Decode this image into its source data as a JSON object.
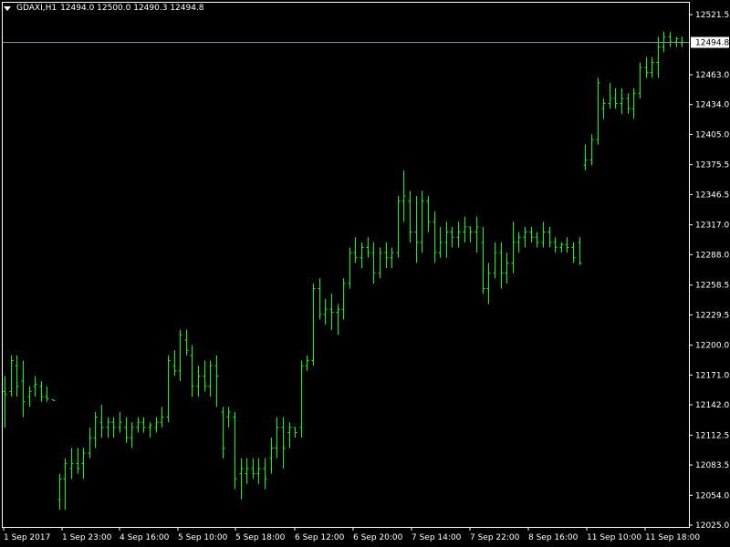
{
  "header": {
    "symbol": "GDAXI,H1",
    "ohlc": "12494.0 12500.0 12490.3 12494.8"
  },
  "colors": {
    "background": "#000000",
    "bars": "#00ff00",
    "grid_text": "#ffffff",
    "price_line": "#7f8fa6"
  },
  "current_price_label": "12494.8",
  "chart_data": {
    "type": "ohlc",
    "current_price": 12494.8,
    "ylim": [
      12020,
      12535
    ],
    "y_ticks": [
      "12521.5",
      "12463.0",
      "12434.0",
      "12405.0",
      "12375.5",
      "12346.5",
      "12317.0",
      "12288.0",
      "12258.5",
      "12229.5",
      "12200.0",
      "12171.0",
      "12142.0",
      "12112.5",
      "12083.5",
      "12054.0",
      "12025.0"
    ],
    "x_ticks": [
      "1 Sep 2017",
      "1 Sep 23:00",
      "4 Sep 16:00",
      "5 Sep 10:00",
      "5 Sep 18:00",
      "6 Sep 12:00",
      "6 Sep 20:00",
      "7 Sep 14:00",
      "7 Sep 22:00",
      "8 Sep 16:00",
      "11 Sep 10:00",
      "11 Sep 18:00"
    ],
    "bars": [
      [
        12155,
        12170,
        12120,
        12152
      ],
      [
        12155,
        12190,
        12150,
        12185
      ],
      [
        12180,
        12190,
        12150,
        12160
      ],
      [
        12165,
        12185,
        12130,
        12145
      ],
      [
        12150,
        12160,
        12140,
        12155
      ],
      [
        12160,
        12170,
        12150,
        12162
      ],
      [
        12160,
        12165,
        12145,
        12150
      ],
      [
        12150,
        12160,
        12145,
        12148
      ],
      [
        12147,
        12147,
        12146,
        12146
      ],
      [
        12050,
        12075,
        12040,
        12070
      ],
      [
        12070,
        12090,
        12040,
        12085
      ],
      [
        12080,
        12100,
        12070,
        12085
      ],
      [
        12085,
        12100,
        12075,
        12080
      ],
      [
        12085,
        12100,
        12070,
        12095
      ],
      [
        12095,
        12120,
        12090,
        12110
      ],
      [
        12110,
        12135,
        12100,
        12130
      ],
      [
        12125,
        12142,
        12110,
        12120
      ],
      [
        12120,
        12130,
        12110,
        12125
      ],
      [
        12125,
        12130,
        12110,
        12120
      ],
      [
        12120,
        12135,
        12115,
        12125
      ],
      [
        12120,
        12130,
        12105,
        12110
      ],
      [
        12110,
        12125,
        12100,
        12120
      ],
      [
        12120,
        12130,
        12115,
        12125
      ],
      [
        12125,
        12130,
        12115,
        12120
      ],
      [
        12120,
        12125,
        12110,
        12122
      ],
      [
        12120,
        12130,
        12115,
        12125
      ],
      [
        12125,
        12140,
        12120,
        12130
      ],
      [
        12130,
        12190,
        12125,
        12185
      ],
      [
        12180,
        12195,
        12170,
        12175
      ],
      [
        12175,
        12215,
        12165,
        12210
      ],
      [
        12205,
        12215,
        12190,
        12195
      ],
      [
        12190,
        12200,
        12150,
        12160
      ],
      [
        12160,
        12180,
        12150,
        12170
      ],
      [
        12170,
        12185,
        12155,
        12160
      ],
      [
        12160,
        12185,
        12150,
        12180
      ],
      [
        12180,
        12190,
        12140,
        12170
      ],
      [
        12135,
        12140,
        12090,
        12100
      ],
      [
        12130,
        12140,
        12120,
        12135
      ],
      [
        12130,
        12135,
        12060,
        12070
      ],
      [
        12075,
        12090,
        12050,
        12080
      ],
      [
        12075,
        12090,
        12065,
        12080
      ],
      [
        12080,
        12090,
        12070,
        12075
      ],
      [
        12075,
        12090,
        12065,
        12080
      ],
      [
        12080,
        12090,
        12060,
        12070
      ],
      [
        12090,
        12110,
        12075,
        12100
      ],
      [
        12100,
        12130,
        12090,
        12120
      ],
      [
        12120,
        12130,
        12080,
        12100
      ],
      [
        12115,
        12125,
        12100,
        12120
      ],
      [
        12120,
        12120,
        12110,
        12115
      ],
      [
        12120,
        12185,
        12110,
        12180
      ],
      [
        12180,
        12190,
        12175,
        12185
      ],
      [
        12185,
        12260,
        12180,
        12255
      ],
      [
        12255,
        12265,
        12225,
        12230
      ],
      [
        12230,
        12245,
        12220,
        12235
      ],
      [
        12235,
        12250,
        12215,
        12232
      ],
      [
        12232,
        12240,
        12210,
        12235
      ],
      [
        12235,
        12265,
        12225,
        12260
      ],
      [
        12260,
        12295,
        12255,
        12290
      ],
      [
        12290,
        12305,
        12280,
        12285
      ],
      [
        12285,
        12300,
        12275,
        12295
      ],
      [
        12295,
        12305,
        12285,
        12290
      ],
      [
        12290,
        12300,
        12260,
        12270
      ],
      [
        12270,
        12295,
        12265,
        12290
      ],
      [
        12290,
        12300,
        12275,
        12285
      ],
      [
        12285,
        12295,
        12275,
        12290
      ],
      [
        12290,
        12345,
        12285,
        12340
      ],
      [
        12340,
        12370,
        12320,
        12345
      ],
      [
        12340,
        12350,
        12300,
        12310
      ],
      [
        12310,
        12345,
        12280,
        12300
      ],
      [
        12300,
        12350,
        12290,
        12340
      ],
      [
        12340,
        12345,
        12310,
        12320
      ],
      [
        12320,
        12330,
        12280,
        12290
      ],
      [
        12290,
        12315,
        12285,
        12300
      ],
      [
        12300,
        12320,
        12285,
        12310
      ],
      [
        12310,
        12315,
        12295,
        12305
      ],
      [
        12305,
        12320,
        12295,
        12310
      ],
      [
        12310,
        12325,
        12300,
        12315
      ],
      [
        12315,
        12315,
        12300,
        12310
      ],
      [
        12310,
        12325,
        12290,
        12315
      ],
      [
        12300,
        12315,
        12250,
        12255
      ],
      [
        12255,
        12280,
        12240,
        12270
      ],
      [
        12270,
        12300,
        12265,
        12290
      ],
      [
        12290,
        12300,
        12255,
        12270
      ],
      [
        12270,
        12290,
        12260,
        12280
      ],
      [
        12280,
        12320,
        12270,
        12300
      ],
      [
        12300,
        12310,
        12290,
        12305
      ],
      [
        12305,
        12315,
        12295,
        12310
      ],
      [
        12310,
        12315,
        12300,
        12305
      ],
      [
        12305,
        12310,
        12295,
        12300
      ],
      [
        12300,
        12320,
        12295,
        12310
      ],
      [
        12310,
        12315,
        12295,
        12300
      ],
      [
        12300,
        12305,
        12290,
        12295
      ],
      [
        12295,
        12300,
        12290,
        12298
      ],
      [
        12298,
        12305,
        12290,
        12295
      ],
      [
        12295,
        12300,
        12280,
        12285
      ],
      [
        12300,
        12305,
        12278,
        12280
      ],
      [
        12375,
        12395,
        12370,
        12380
      ],
      [
        12380,
        12405,
        12375,
        12400
      ],
      [
        12400,
        12460,
        12395,
        12455
      ],
      [
        12430,
        12440,
        12420,
        12435
      ],
      [
        12435,
        12455,
        12430,
        12440
      ],
      [
        12440,
        12450,
        12430,
        12435
      ],
      [
        12435,
        12450,
        12425,
        12440
      ],
      [
        12440,
        12445,
        12425,
        12430
      ],
      [
        12430,
        12450,
        12420,
        12445
      ],
      [
        12445,
        12475,
        12440,
        12470
      ],
      [
        12470,
        12480,
        12460,
        12465
      ],
      [
        12465,
        12480,
        12460,
        12475
      ],
      [
        12475,
        12500,
        12460,
        12490
      ],
      [
        12490,
        12505,
        12485,
        12500
      ],
      [
        12500,
        12505,
        12490,
        12495
      ],
      [
        12495,
        12500,
        12490,
        12498
      ],
      [
        12494,
        12500,
        12490,
        12494.8
      ]
    ]
  }
}
